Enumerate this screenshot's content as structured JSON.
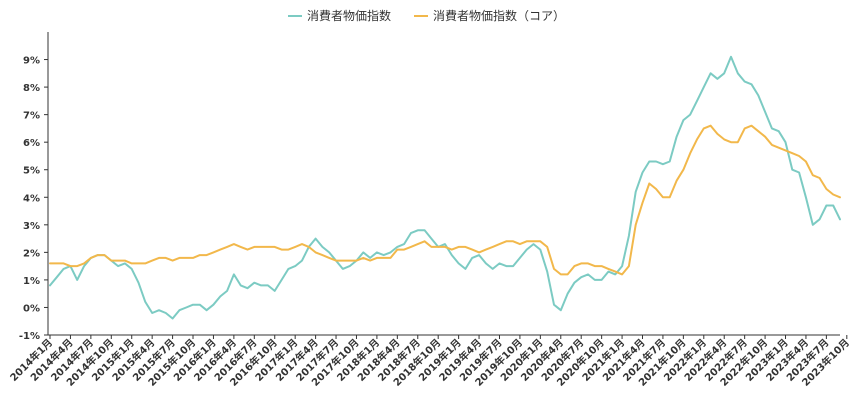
{
  "chart_data": {
    "type": "line",
    "title": "",
    "xlabel": "",
    "ylabel": "",
    "ylim": [
      -1,
      10
    ],
    "y_ticks": [
      "-1%",
      "0%",
      "1%",
      "2%",
      "3%",
      "4%",
      "5%",
      "6%",
      "7%",
      "8%",
      "9%"
    ],
    "y_tick_values": [
      -1,
      0,
      1,
      2,
      3,
      4,
      5,
      6,
      7,
      8,
      9
    ],
    "grid": "none",
    "legend_position": "top-center",
    "x_tick_labels": [
      "2014年1月",
      "2014年4月",
      "2014年7月",
      "2014年10月",
      "2015年1月",
      "2015年4月",
      "2015年7月",
      "2015年10月",
      "2016年1月",
      "2016年4月",
      "2016年7月",
      "2016年10月",
      "2017年1月",
      "2017年4月",
      "2017年7月",
      "2017年10月",
      "2018年1月",
      "2018年4月",
      "2018年7月",
      "2018年10月",
      "2019年1月",
      "2019年4月",
      "2019年7月",
      "2019年10月",
      "2020年1月",
      "2020年4月",
      "2020年7月",
      "2020年10月",
      "2021年1月",
      "2021年4月",
      "2021年7月",
      "2021年10月",
      "2022年1月",
      "2022年4月",
      "2022年7月",
      "2022年10月",
      "2023年1月",
      "2023年4月",
      "2023年7月",
      "2023年10月"
    ],
    "series": [
      {
        "name": "消費者物価指数",
        "color": "#7ccbc3",
        "values": [
          0.8,
          1.1,
          1.4,
          1.5,
          1.0,
          1.5,
          1.8,
          1.9,
          1.9,
          1.7,
          1.5,
          1.6,
          1.4,
          0.9,
          0.2,
          -0.2,
          -0.1,
          -0.2,
          -0.4,
          -0.1,
          0.0,
          0.1,
          0.1,
          -0.1,
          0.1,
          0.4,
          0.6,
          1.2,
          0.8,
          0.7,
          0.9,
          0.8,
          0.8,
          0.6,
          1.0,
          1.4,
          1.5,
          1.7,
          2.2,
          2.5,
          2.2,
          2.0,
          1.7,
          1.4,
          1.5,
          1.7,
          2.0,
          1.8,
          2.0,
          1.9,
          2.0,
          2.2,
          2.3,
          2.7,
          2.8,
          2.8,
          2.5,
          2.2,
          2.3,
          1.9,
          1.6,
          1.4,
          1.8,
          1.9,
          1.6,
          1.4,
          1.6,
          1.5,
          1.5,
          1.8,
          2.1,
          2.3,
          2.1,
          1.3,
          0.1,
          -0.1,
          0.5,
          0.9,
          1.1,
          1.2,
          1.0,
          1.0,
          1.3,
          1.2,
          1.5,
          2.6,
          4.2,
          4.9,
          5.3,
          5.3,
          5.2,
          5.3,
          6.2,
          6.8,
          7.0,
          7.5,
          8.0,
          8.5,
          8.3,
          8.5,
          9.1,
          8.5,
          8.2,
          8.1,
          7.7,
          7.1,
          6.5,
          6.4,
          6.0,
          5.0,
          4.9,
          4.0,
          3.0,
          3.2,
          3.7,
          3.7,
          3.2
        ]
      },
      {
        "name": "消費者物価指数（コア）",
        "color": "#f2b84b",
        "values": [
          1.6,
          1.6,
          1.6,
          1.5,
          1.5,
          1.6,
          1.8,
          1.9,
          1.9,
          1.7,
          1.7,
          1.7,
          1.6,
          1.6,
          1.6,
          1.7,
          1.8,
          1.8,
          1.7,
          1.8,
          1.8,
          1.8,
          1.9,
          1.9,
          2.0,
          2.1,
          2.2,
          2.3,
          2.2,
          2.1,
          2.2,
          2.2,
          2.2,
          2.2,
          2.1,
          2.1,
          2.2,
          2.3,
          2.2,
          2.0,
          1.9,
          1.8,
          1.7,
          1.7,
          1.7,
          1.7,
          1.8,
          1.7,
          1.8,
          1.8,
          1.8,
          2.1,
          2.1,
          2.2,
          2.3,
          2.4,
          2.2,
          2.2,
          2.2,
          2.1,
          2.2,
          2.2,
          2.1,
          2.0,
          2.1,
          2.2,
          2.3,
          2.4,
          2.4,
          2.3,
          2.4,
          2.4,
          2.4,
          2.2,
          1.4,
          1.2,
          1.2,
          1.5,
          1.6,
          1.6,
          1.5,
          1.5,
          1.4,
          1.3,
          1.2,
          1.5,
          3.0,
          3.8,
          4.5,
          4.3,
          4.0,
          4.0,
          4.6,
          5.0,
          5.6,
          6.1,
          6.5,
          6.6,
          6.3,
          6.1,
          6.0,
          6.0,
          6.5,
          6.6,
          6.4,
          6.2,
          5.9,
          5.8,
          5.7,
          5.6,
          5.5,
          5.3,
          4.8,
          4.7,
          4.3,
          4.1,
          4.0
        ]
      }
    ]
  }
}
